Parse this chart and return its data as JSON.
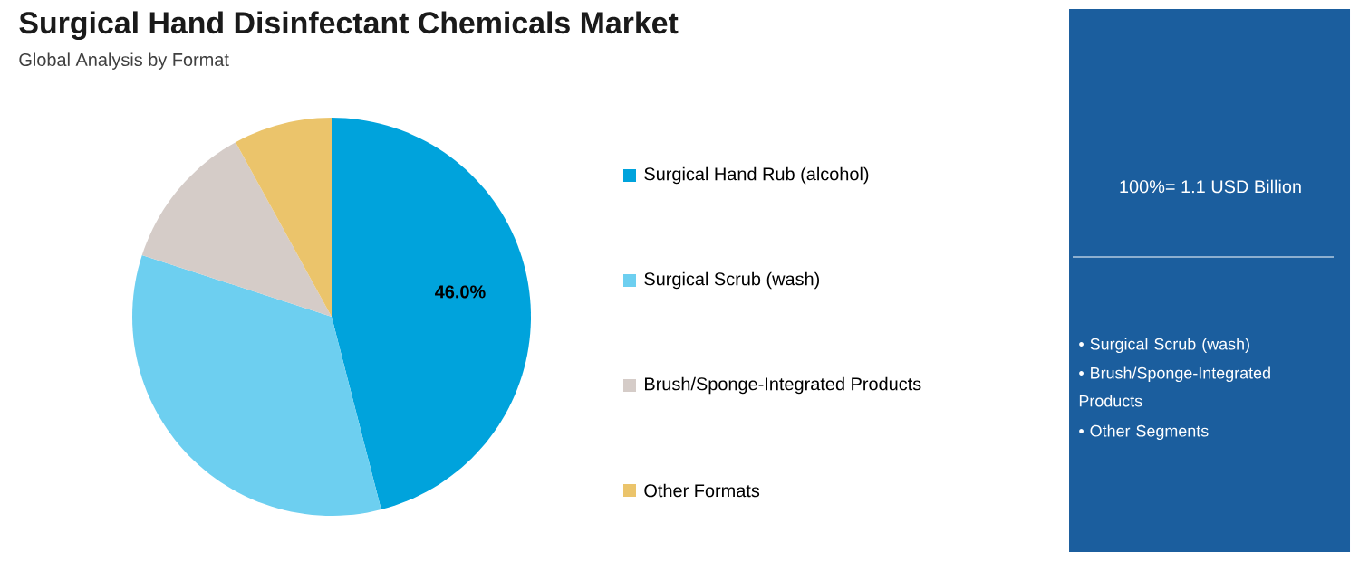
{
  "chart_data": {
    "type": "pie",
    "title": "Surgical Hand Disinfectant Chemicals Market",
    "subtitle": "Global Analysis by Format",
    "categories": [
      "Surgical Hand Rub (alcohol)",
      "Surgical Scrub (wash)",
      "Brush/Sponge-Integrated Products",
      "Other Formats"
    ],
    "values": [
      46,
      34,
      12,
      8
    ],
    "colors": [
      "#00a3dc",
      "#6dcff0",
      "#d5ccc8",
      "#ebc46b"
    ],
    "value_labels": [
      "46.0%",
      null,
      null,
      null
    ],
    "legend": "right",
    "annotations": [
      "100%= 1.1 USD Billion",
      "• Surgical Scrub (wash)",
      "• Brush/Sponge-Integrated Products",
      "• Other Segments"
    ]
  }
}
